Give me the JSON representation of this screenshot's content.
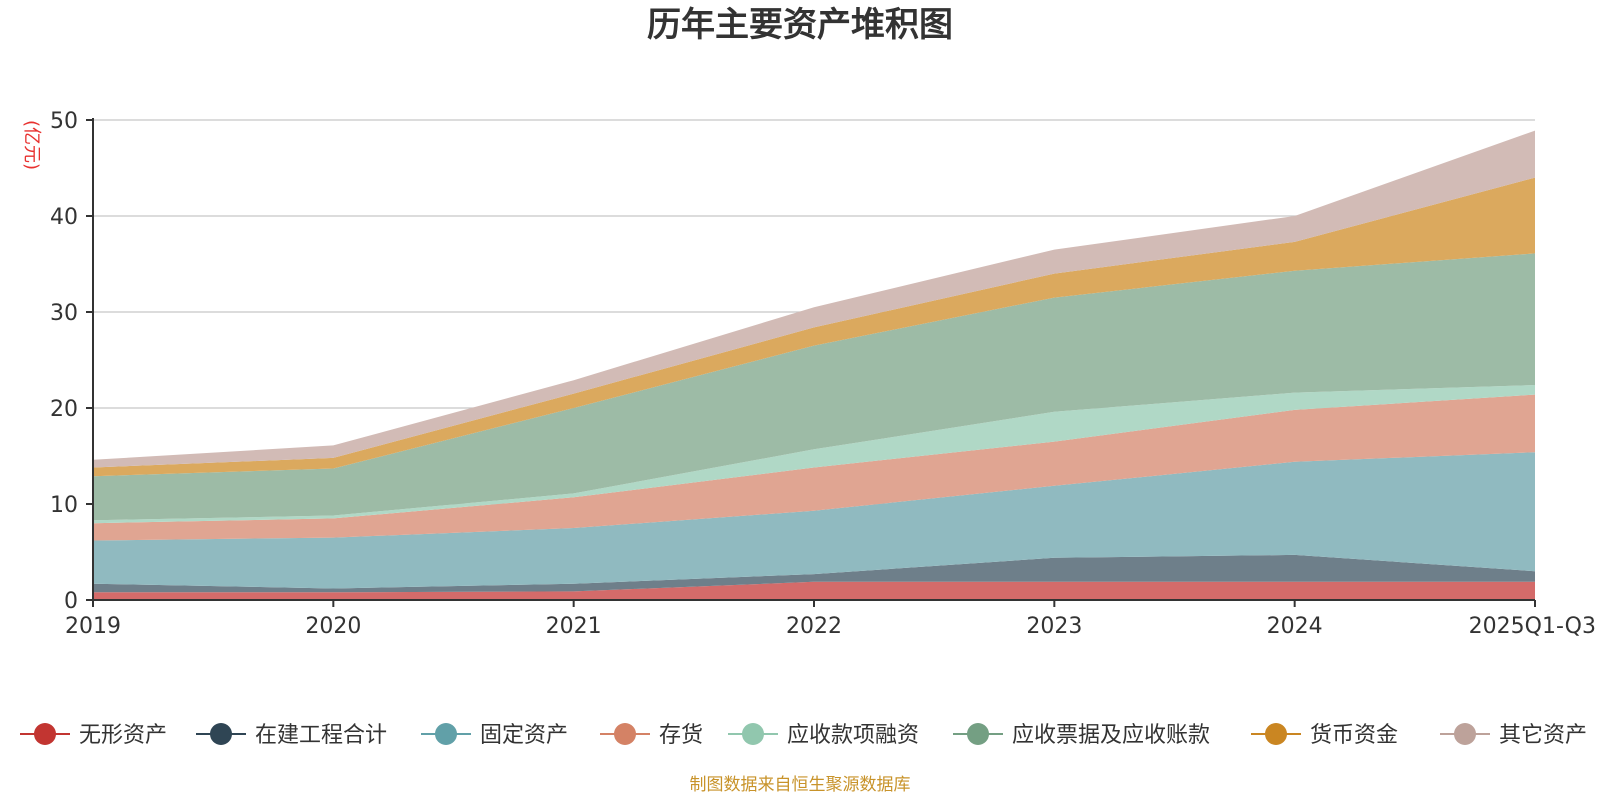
{
  "chart_data": {
    "type": "area",
    "stacked": true,
    "title": "历年主要资产堆积图",
    "ylabel": "(亿元)",
    "ylim": [
      0,
      50
    ],
    "yticks": [
      0,
      10,
      20,
      30,
      40,
      50
    ],
    "categories": [
      "2019",
      "2020",
      "2021",
      "2022",
      "2023",
      "2024",
      "2025Q1-Q3"
    ],
    "legend_position": "bottom",
    "source": "制图数据来自恒生聚源数据库",
    "series": [
      {
        "name": "无形资产",
        "color": "#c23531",
        "area_color": "#d46b6a",
        "values": [
          0.8,
          0.8,
          0.9,
          1.9,
          1.9,
          1.9,
          1.9
        ]
      },
      {
        "name": "在建工程合计",
        "color": "#2f4554",
        "area_color": "#6e7f8a",
        "values": [
          0.9,
          0.4,
          0.8,
          0.8,
          2.5,
          2.8,
          1.1
        ]
      },
      {
        "name": "固定资产",
        "color": "#61a0a8",
        "area_color": "#90bac0",
        "values": [
          4.5,
          5.3,
          5.8,
          6.6,
          7.5,
          9.7,
          12.4
        ]
      },
      {
        "name": "存货",
        "color": "#d48265",
        "area_color": "#e0a592",
        "values": [
          1.8,
          2.0,
          3.2,
          4.5,
          4.6,
          5.4,
          6.0
        ]
      },
      {
        "name": "应收款项融资",
        "color": "#91c7ae",
        "area_color": "#b0d8c6",
        "values": [
          0.3,
          0.3,
          0.4,
          1.9,
          3.1,
          1.8,
          1.0
        ]
      },
      {
        "name": "应收票据及应收账款",
        "color": "#749f83",
        "area_color": "#9dbba6",
        "values": [
          4.6,
          4.9,
          8.9,
          10.8,
          11.9,
          12.7,
          13.7
        ]
      },
      {
        "name": "货币资金",
        "color": "#ca8622",
        "area_color": "#dba95e",
        "values": [
          0.9,
          1.1,
          1.5,
          1.9,
          2.5,
          3.0,
          7.9
        ]
      },
      {
        "name": "其它资产",
        "color": "#bda29a",
        "area_color": "#d2bbb6",
        "values": [
          0.8,
          1.3,
          1.4,
          2.1,
          2.5,
          2.7,
          4.9
        ]
      }
    ]
  }
}
